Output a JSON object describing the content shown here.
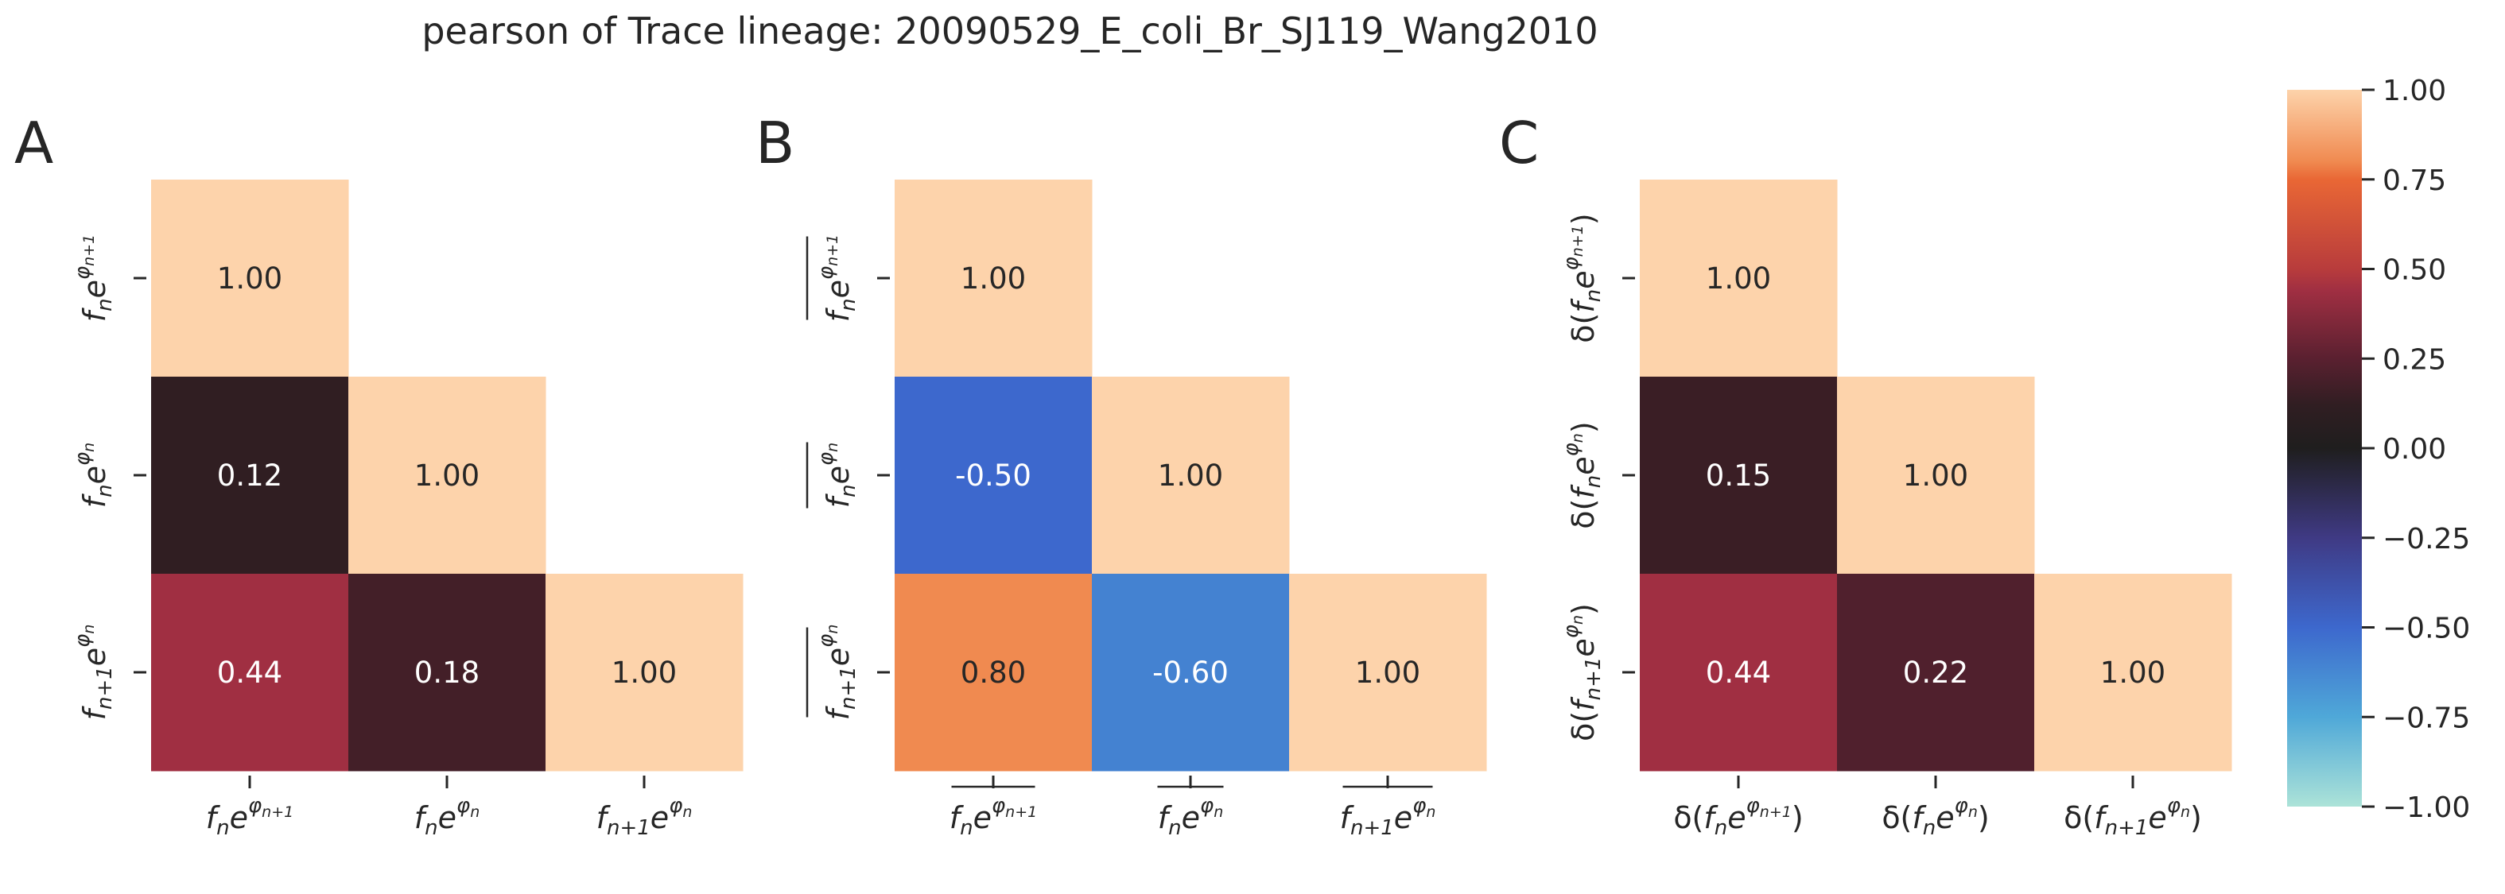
{
  "chart_data": {
    "type": "heatmap",
    "title": "pearson of Trace lineage: 20090529_E_coli_Br_SJ119_Wang2010",
    "panels": [
      {
        "label": "A",
        "row_labels": [
          "f_ne^{φ_{n+1}}",
          "f_ne^{φ_n}",
          "f_{n+1}e^{φ_n}"
        ],
        "col_labels": [
          "f_ne^{φ_{n+1}}",
          "f_ne^{φ_n}",
          "f_{n+1}e^{φ_n}"
        ],
        "matrix": [
          [
            1.0,
            null,
            null
          ],
          [
            0.12,
            1.0,
            null
          ],
          [
            0.44,
            0.18,
            1.0
          ]
        ],
        "cell_text": [
          [
            "1.00",
            "",
            ""
          ],
          [
            "0.12",
            "1.00",
            ""
          ],
          [
            "0.44",
            "0.18",
            "1.00"
          ]
        ]
      },
      {
        "label": "B",
        "row_labels": [
          "overline(f_ne^{φ_{n+1}})",
          "overline(f_ne^{φ_n})",
          "overline(f_{n+1}e^{φ_n})"
        ],
        "col_labels": [
          "overline(f_ne^{φ_{n+1}})",
          "overline(f_ne^{φ_n})",
          "overline(f_{n+1}e^{φ_n})"
        ],
        "matrix": [
          [
            1.0,
            null,
            null
          ],
          [
            -0.5,
            1.0,
            null
          ],
          [
            0.8,
            -0.6,
            1.0
          ]
        ],
        "cell_text": [
          [
            "1.00",
            "",
            ""
          ],
          [
            "-0.50",
            "1.00",
            ""
          ],
          [
            "0.80",
            "-0.60",
            "1.00"
          ]
        ]
      },
      {
        "label": "C",
        "row_labels": [
          "δ(f_ne^{φ_{n+1}})",
          "δ(f_ne^{φ_n})",
          "δ(f_{n+1}e^{φ_n})"
        ],
        "col_labels": [
          "δ(f_ne^{φ_{n+1}})",
          "δ(f_ne^{φ_n})",
          "δ(f_{n+1}e^{φ_n})"
        ],
        "matrix": [
          [
            1.0,
            null,
            null
          ],
          [
            0.15,
            1.0,
            null
          ],
          [
            0.44,
            0.22,
            1.0
          ]
        ],
        "cell_text": [
          [
            "1.00",
            "",
            ""
          ],
          [
            "0.15",
            "1.00",
            ""
          ],
          [
            "0.44",
            "0.22",
            "1.00"
          ]
        ]
      }
    ],
    "colorbar": {
      "vmin": -1.0,
      "vmax": 1.0,
      "ticks": [
        1.0,
        0.75,
        0.5,
        0.25,
        0.0,
        -0.25,
        -0.5,
        -0.75,
        -1.0
      ],
      "tick_labels": [
        "1.00",
        "0.75",
        "0.50",
        "0.25",
        "0.00",
        "−0.25",
        "−0.50",
        "−0.75",
        "−1.00"
      ],
      "colormap": "icefire",
      "stops": [
        {
          "v": -1.0,
          "color": "#ace3d8"
        },
        {
          "v": -0.75,
          "color": "#4fa8d8"
        },
        {
          "v": -0.5,
          "color": "#3d68cd"
        },
        {
          "v": -0.25,
          "color": "#3f3a84"
        },
        {
          "v": 0.0,
          "color": "#1f1e1e"
        },
        {
          "v": 0.12,
          "color": "#301e22"
        },
        {
          "v": 0.25,
          "color": "#5a2030"
        },
        {
          "v": 0.44,
          "color": "#a02f42"
        },
        {
          "v": 0.5,
          "color": "#b83c3c"
        },
        {
          "v": 0.75,
          "color": "#e96735"
        },
        {
          "v": 0.8,
          "color": "#f08a50"
        },
        {
          "v": 1.0,
          "color": "#fdd3ab"
        }
      ]
    },
    "grid": false,
    "legend": "colorbar-right"
  }
}
